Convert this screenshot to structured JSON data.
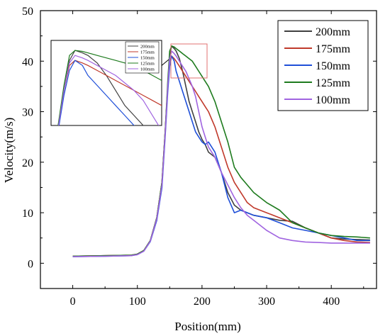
{
  "chart_data": {
    "type": "line",
    "xlabel": "Position(mm)",
    "ylabel": "Velocity(m/s)",
    "xlim": [
      -50,
      470
    ],
    "ylim": [
      -5,
      50
    ],
    "xticks": [
      0,
      100,
      200,
      300,
      400
    ],
    "yticks": [
      0,
      10,
      20,
      30,
      40,
      50
    ],
    "legend_position": "top-right",
    "series": [
      {
        "name": "200mm",
        "color": "#404040",
        "x": [
          0,
          50,
          90,
          100,
          110,
          120,
          130,
          138,
          143,
          147,
          150,
          153,
          157,
          160,
          165,
          170,
          175,
          180,
          185,
          190,
          195,
          200,
          205,
          210,
          220,
          230,
          240,
          250,
          260,
          270,
          280,
          300,
          320,
          340,
          360,
          380,
          400,
          420,
          440,
          460
        ],
        "y": [
          1.4,
          1.5,
          1.6,
          1.8,
          2.5,
          4.5,
          9,
          16,
          26,
          35,
          41,
          43,
          42.5,
          42,
          40.5,
          38,
          35,
          32,
          30,
          28,
          26,
          24.5,
          23.5,
          22,
          21,
          18,
          14,
          11.5,
          10.5,
          10,
          9.5,
          9,
          8.5,
          8.3,
          7,
          6,
          5,
          4.8,
          4.7,
          4.6
        ]
      },
      {
        "name": "175mm",
        "color": "#c0392b",
        "x": [
          0,
          50,
          90,
          100,
          110,
          120,
          130,
          138,
          143,
          147,
          150,
          153,
          157,
          160,
          165,
          170,
          175,
          180,
          185,
          190,
          195,
          200,
          205,
          210,
          220,
          230,
          240,
          250,
          260,
          270,
          280,
          300,
          320,
          340,
          360,
          380,
          400,
          420,
          440,
          460
        ],
        "y": [
          1.4,
          1.5,
          1.6,
          1.8,
          2.5,
          4.5,
          9,
          16,
          26,
          35,
          40,
          41,
          40.5,
          40,
          39,
          38,
          37,
          36,
          35,
          34,
          33,
          32,
          31,
          30,
          27,
          23,
          19,
          16,
          14,
          12,
          11,
          10,
          9,
          8,
          7,
          6,
          5,
          4.5,
          4.2,
          4.1
        ]
      },
      {
        "name": "150mm",
        "color": "#1f4fd8",
        "x": [
          0,
          50,
          90,
          100,
          110,
          120,
          130,
          138,
          143,
          147,
          150,
          153,
          157,
          160,
          165,
          170,
          175,
          180,
          185,
          190,
          195,
          200,
          205,
          210,
          220,
          230,
          240,
          250,
          260,
          270,
          280,
          300,
          320,
          340,
          360,
          380,
          400,
          420,
          440,
          460
        ],
        "y": [
          1.3,
          1.4,
          1.5,
          1.7,
          2.4,
          4.3,
          8.5,
          15,
          25,
          34,
          39,
          41,
          40,
          38,
          36,
          34,
          32,
          30,
          28,
          26,
          25,
          24,
          23.5,
          24,
          22,
          18,
          13,
          10,
          10.5,
          10,
          9.5,
          9,
          8,
          7,
          6.5,
          6,
          5.5,
          5,
          4.5,
          4.5
        ]
      },
      {
        "name": "125mm",
        "color": "#1e7b1e",
        "x": [
          0,
          50,
          90,
          100,
          110,
          120,
          130,
          138,
          143,
          147,
          150,
          153,
          157,
          160,
          165,
          170,
          175,
          180,
          185,
          190,
          195,
          200,
          205,
          210,
          220,
          230,
          240,
          250,
          260,
          270,
          280,
          300,
          320,
          340,
          360,
          380,
          400,
          420,
          440,
          460
        ],
        "y": [
          1.4,
          1.5,
          1.6,
          1.8,
          2.5,
          4.5,
          9,
          16,
          26,
          36,
          42,
          43,
          42.8,
          42.5,
          42,
          41.5,
          41,
          40.5,
          40,
          39,
          38,
          37,
          36,
          35,
          32,
          28,
          24,
          19,
          17,
          15.5,
          14,
          12,
          10.5,
          8,
          7,
          6,
          5.5,
          5.3,
          5.2,
          5
        ]
      },
      {
        "name": "100mm",
        "color": "#a064e0",
        "x": [
          0,
          50,
          90,
          100,
          110,
          120,
          130,
          138,
          143,
          147,
          150,
          153,
          157,
          160,
          165,
          170,
          175,
          180,
          185,
          190,
          195,
          200,
          205,
          210,
          220,
          230,
          240,
          250,
          260,
          270,
          280,
          300,
          320,
          340,
          360,
          380,
          400,
          420,
          440,
          460
        ],
        "y": [
          1.3,
          1.4,
          1.5,
          1.7,
          2.4,
          4.4,
          8.8,
          15.5,
          25.5,
          35,
          40.5,
          42,
          41.5,
          41,
          40,
          39,
          38,
          36.5,
          35,
          33,
          30,
          27,
          25,
          23,
          21,
          18,
          15.5,
          13,
          11,
          9.5,
          8.5,
          6.5,
          5,
          4.5,
          4.2,
          4.1,
          4,
          4,
          4,
          4
        ]
      }
    ]
  }
}
